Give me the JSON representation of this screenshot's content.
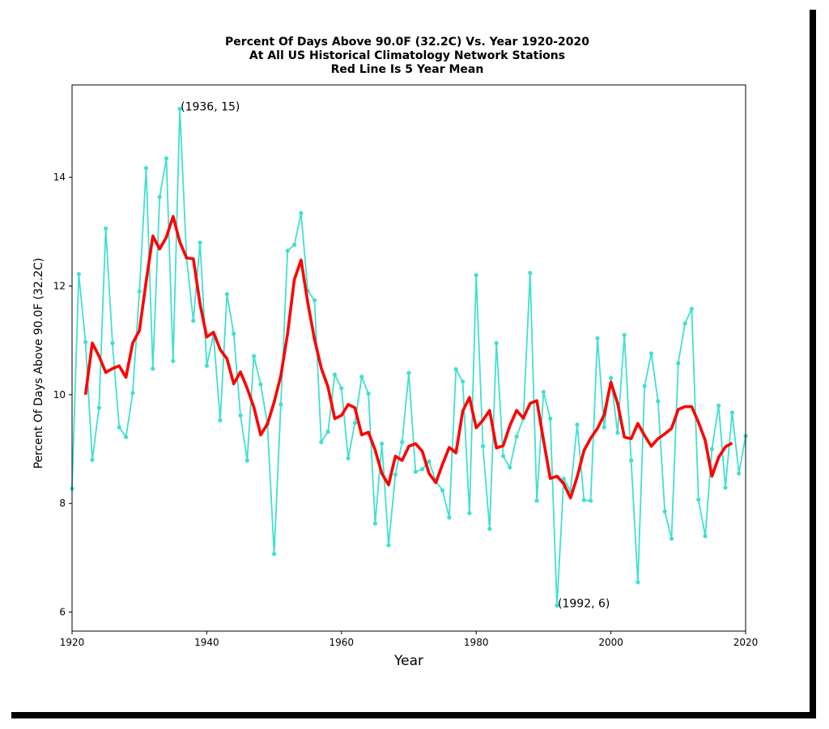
{
  "chart_data": {
    "type": "line",
    "title_lines": [
      "Percent Of Days Above 90.0F (32.2C) Vs. Year 1920-2020",
      "At All US Historical Climatology Network Stations",
      "Red Line Is 5 Year Mean"
    ],
    "xlabel": "Year",
    "ylabel": "Percent Of Days Above 90.0F (32.2C)",
    "xlim": [
      1920,
      2020
    ],
    "ylim": [
      5.65,
      15.7
    ],
    "xticks": [
      "1920",
      "1940",
      "1960",
      "1980",
      "2000",
      "2020"
    ],
    "yticks": [
      "6",
      "8",
      "10",
      "12",
      "14"
    ],
    "grid": false,
    "colors": {
      "yearly": "#40e0d0",
      "mean": "#ff0000"
    },
    "series": [
      {
        "x": [
          1920,
          1921,
          1922,
          1923,
          1924,
          1925,
          1926,
          1927,
          1928,
          1929,
          1930,
          1931,
          1932,
          1933,
          1934,
          1935,
          1936,
          1937,
          1938,
          1939,
          1940,
          1941,
          1942,
          1943,
          1944,
          1945,
          1946,
          1947,
          1948,
          1949,
          1950,
          1951,
          1952,
          1953,
          1954,
          1955,
          1956,
          1957,
          1958,
          1959,
          1960,
          1961,
          1962,
          1963,
          1964,
          1965,
          1966,
          1967,
          1968,
          1969,
          1970,
          1971,
          1972,
          1973,
          1974,
          1975,
          1976,
          1977,
          1978,
          1979,
          1980,
          1981,
          1982,
          1983,
          1984,
          1985,
          1986,
          1987,
          1988,
          1989,
          1990,
          1991,
          1992,
          1993,
          1994,
          1995,
          1996,
          1997,
          1998,
          1999,
          2000,
          2001,
          2002,
          2003,
          2004,
          2005,
          2006,
          2007,
          2008,
          2009,
          2010,
          2011,
          2012,
          2013,
          2014,
          2015,
          2016,
          2017,
          2018,
          2019,
          2020
        ],
        "values": [
          8.27,
          12.22,
          10.97,
          8.8,
          9.76,
          13.06,
          10.95,
          9.4,
          9.22,
          10.03,
          11.9,
          14.17,
          10.48,
          13.64,
          14.35,
          10.62,
          15.26,
          12.52,
          11.36,
          12.8,
          10.53,
          11.11,
          9.53,
          11.85,
          11.12,
          9.62,
          8.79,
          10.71,
          10.19,
          9.46,
          7.07,
          9.82,
          12.65,
          12.76,
          13.34,
          11.91,
          11.74,
          9.13,
          9.32,
          10.37,
          10.12,
          8.83,
          9.48,
          10.33,
          10.02,
          7.63,
          9.1,
          7.23,
          8.53,
          9.13,
          10.4,
          8.58,
          8.63,
          8.77,
          8.41,
          8.24,
          7.74,
          10.47,
          10.24,
          7.82,
          12.2,
          9.05,
          7.53,
          10.95,
          8.87,
          8.66,
          9.23,
          9.56,
          12.24,
          8.05,
          10.05,
          9.56,
          6.12,
          8.45,
          8.23,
          9.45,
          8.06,
          8.05,
          11.04,
          9.4,
          10.31,
          9.3,
          11.1,
          8.79,
          6.55,
          10.16,
          10.76,
          9.88,
          7.85,
          7.35,
          10.58,
          11.31,
          11.58,
          8.07,
          7.4,
          9.0,
          9.8,
          8.29,
          9.67,
          8.55,
          9.24
        ]
      },
      {
        "x": [
          1922,
          1923,
          1924,
          1925,
          1926,
          1927,
          1928,
          1929,
          1930,
          1931,
          1932,
          1933,
          1934,
          1935,
          1936,
          1937,
          1938,
          1939,
          1940,
          1941,
          1942,
          1943,
          1944,
          1945,
          1946,
          1947,
          1948,
          1949,
          1950,
          1951,
          1952,
          1953,
          1954,
          1955,
          1956,
          1957,
          1958,
          1959,
          1960,
          1961,
          1962,
          1963,
          1964,
          1965,
          1966,
          1967,
          1968,
          1969,
          1970,
          1971,
          1972,
          1973,
          1974,
          1975,
          1976,
          1977,
          1978,
          1979,
          1980,
          1981,
          1982,
          1983,
          1984,
          1985,
          1986,
          1987,
          1988,
          1989,
          1990,
          1991,
          1992,
          1993,
          1994,
          1995,
          1996,
          1997,
          1998,
          1999,
          2000,
          2001,
          2002,
          2003,
          2004,
          2005,
          2006,
          2007,
          2008,
          2009,
          2010,
          2011,
          2012,
          2013,
          2014,
          2015,
          2016,
          2017,
          2018
        ],
        "values": [
          10.0,
          10.95,
          10.71,
          10.41,
          10.48,
          10.53,
          10.32,
          10.95,
          11.18,
          12.08,
          12.92,
          12.68,
          12.9,
          13.28,
          12.81,
          12.52,
          12.5,
          11.67,
          11.06,
          11.15,
          10.83,
          10.66,
          10.2,
          10.42,
          10.12,
          9.77,
          9.26,
          9.46,
          9.86,
          10.35,
          11.12,
          12.12,
          12.48,
          11.69,
          11.02,
          10.49,
          10.14,
          9.56,
          9.62,
          9.82,
          9.76,
          9.26,
          9.31,
          8.98,
          8.55,
          8.34,
          8.87,
          8.79,
          9.05,
          9.1,
          8.96,
          8.55,
          8.38,
          8.72,
          9.03,
          8.93,
          9.7,
          9.95,
          9.39,
          9.53,
          9.71,
          9.02,
          9.06,
          9.43,
          9.71,
          9.57,
          9.84,
          9.89,
          9.16,
          8.46,
          8.5,
          8.36,
          8.1,
          8.49,
          8.97,
          9.2,
          9.38,
          9.63,
          10.23,
          9.84,
          9.22,
          9.19,
          9.47,
          9.25,
          9.05,
          9.19,
          9.28,
          9.38,
          9.73,
          9.78,
          9.78,
          9.49,
          9.16,
          8.5,
          8.85,
          9.04,
          9.11
        ]
      }
    ],
    "annotations": [
      {
        "x": 1936,
        "y": 15,
        "text": "(1936, 15)"
      },
      {
        "x": 1992,
        "y": 6,
        "text": "(1992, 6)"
      }
    ]
  }
}
